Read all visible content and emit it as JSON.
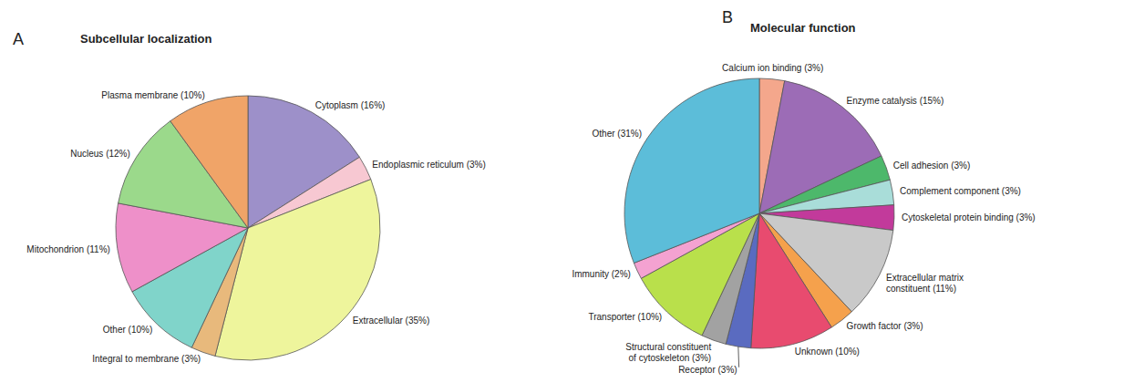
{
  "chart_data": [
    {
      "type": "pie",
      "annotations": [
        "A"
      ],
      "title": "Subcellular localization",
      "categories": [
        "Cytoplasm (16%)",
        "Endoplasmic reticulum (3%)",
        "Extracellular (35%)",
        "Integral to membrane (3%)",
        "Other (10%)",
        "Mitochondrion (11%)",
        "Nucleus (12%)",
        "Plasma membrane (10%)"
      ],
      "values": [
        16,
        3,
        35,
        3,
        10,
        11,
        12,
        10
      ],
      "colors": [
        "#9d90c9",
        "#f7c8d2",
        "#eef59c",
        "#e8b97c",
        "#80d4ca",
        "#ee90c9",
        "#9bd98b",
        "#f0a468"
      ]
    },
    {
      "type": "pie",
      "annotations": [
        "B"
      ],
      "title": "Molecular function",
      "categories": [
        "Calcium ion binding (3%)",
        "Enzyme catalysis (15%)",
        "Cell adhesion (3%)",
        "Complement component (3%)",
        "Cytoskeletal protein binding (3%)",
        "Extracellular matrix constituent (11%)",
        "Growth factor (3%)",
        "Unknown (10%)",
        "Receptor (3%)",
        "Structural constituent of cytoskeleton (3%)",
        "Transporter (10%)",
        "Immunity (2%)",
        "Other (31%)"
      ],
      "values": [
        3,
        15,
        3,
        3,
        3,
        11,
        3,
        10,
        3,
        3,
        10,
        2,
        31
      ],
      "colors": [
        "#f4a78c",
        "#9c6cb6",
        "#4db86b",
        "#a9ddd9",
        "#c23a9b",
        "#c9c9c9",
        "#f5a14c",
        "#e84b6f",
        "#5a6bc0",
        "#a2a2a2",
        "#b9e04b",
        "#f4a2d1",
        "#5cbdd9"
      ]
    }
  ]
}
